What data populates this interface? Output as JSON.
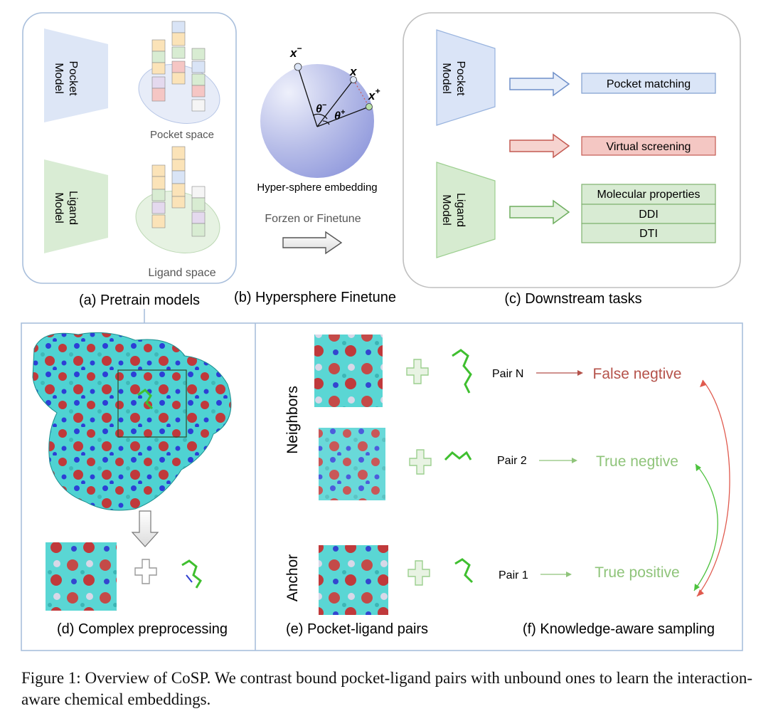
{
  "panels": {
    "a": {
      "caption": "(a) Pretrain models",
      "pocket_model_label": [
        "Pocket",
        "Model"
      ],
      "ligand_model_label": [
        "Ligand",
        "Model"
      ],
      "pocket_space": "Pocket space",
      "ligand_space": "Ligand  space"
    },
    "b": {
      "caption": "(b) Hypersphere Finetune",
      "x_neg": "x",
      "x_anchor": "x",
      "x_pos": "x",
      "theta_neg": "θ",
      "theta_pos": "θ",
      "sup_neg": "−",
      "sup_pos": "+",
      "embedding_label": "Hyper-sphere embedding",
      "transfer_label": "Forzen or Finetune"
    },
    "c": {
      "caption": "(c) Downstream tasks",
      "pocket_model_label": [
        "Pocket",
        "Model"
      ],
      "ligand_model_label": [
        "Ligand",
        "Model"
      ],
      "tasks": {
        "pocket_matching": "Pocket matching",
        "virtual_screening": "Virtual screening",
        "molecular_properties": "Molecular properties",
        "ddi": "DDI",
        "dti": "DTI"
      }
    },
    "d": {
      "caption": "(d) Complex preprocessing"
    },
    "e": {
      "caption": "(e) Pocket-ligand pairs",
      "neighbors_label": "Neighbors",
      "anchor_label": "Anchor"
    },
    "f": {
      "caption": "(f) Knowledge-aware sampling",
      "pairs": [
        {
          "pair": "Pair N",
          "outcome": "False negtive",
          "color": "#b5524a"
        },
        {
          "pair": "Pair 2",
          "outcome": "True negtive",
          "color": "#8fc47a"
        },
        {
          "pair": "Pair 1",
          "outcome": "True positive",
          "color": "#8fc47a"
        }
      ]
    }
  },
  "colors": {
    "pocket_blue": "#dae5f7",
    "ligand_green": "#d8ebd3",
    "virtual_red": "#f4c7c3",
    "surface_cyan": "#4fd2d2",
    "surface_red": "#c0393b",
    "surface_blue": "#2c3fd6"
  },
  "figure_caption": "Figure 1: Overview of CoSP. We contrast bound pocket-ligand pairs with unbound ones to learn the interaction-aware chemical embeddings."
}
